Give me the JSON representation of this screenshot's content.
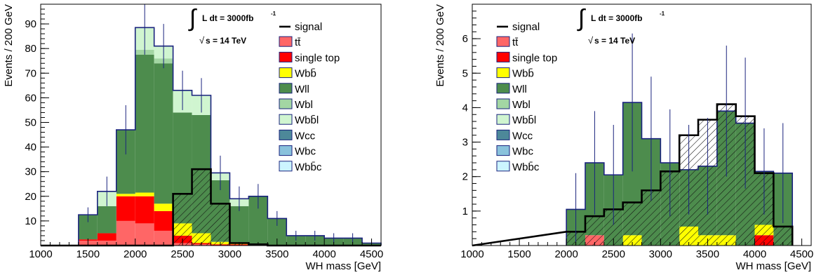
{
  "chart_data": [
    {
      "type": "bar",
      "stacked": true,
      "xlabel": "WH mass [GeV]",
      "ylabel": "Events / 200 GeV",
      "xlim": [
        1000,
        4600
      ],
      "ylim": [
        0,
        98
      ],
      "xticks": [
        1000,
        1500,
        2000,
        2500,
        3000,
        3500,
        4000,
        4500
      ],
      "yticks": [
        10,
        20,
        30,
        40,
        50,
        60,
        70,
        80,
        90
      ],
      "bin_edges": [
        1400,
        1600,
        1800,
        2000,
        2200,
        2400,
        2600,
        2800,
        3000,
        3200,
        3400,
        3600,
        3800,
        4000,
        4200,
        4400,
        4600
      ],
      "annotation": {
        "integral": "L dt = 3000fb",
        "exponent": "-1",
        "energy": "s = 14 TeV"
      },
      "legend_position": "top-right",
      "series": [
        {
          "name": "tt̄",
          "color": "#ff6666",
          "hatched": false,
          "values": [
            2,
            2,
            10,
            9,
            6,
            1,
            0.5,
            0,
            0,
            0,
            0,
            0,
            0,
            0,
            0,
            0
          ]
        },
        {
          "name": "single top",
          "color": "#ff0000",
          "hatched": false,
          "values": [
            0.5,
            3,
            10,
            11,
            8,
            3,
            0.5,
            0.5,
            0.5,
            0,
            0,
            0,
            0,
            0,
            0,
            0
          ]
        },
        {
          "name": "Wbb̄",
          "color": "#ffff00",
          "hatched": false,
          "values": [
            0,
            0,
            1,
            1.5,
            3,
            5,
            4,
            1,
            0.5,
            0,
            0,
            0,
            0,
            0,
            0,
            0
          ]
        },
        {
          "name": "Wll",
          "color": "#4d8c4d",
          "hatched": false,
          "values": [
            10,
            11,
            26,
            56,
            57,
            45,
            48,
            25,
            15,
            20,
            11,
            4,
            4,
            3,
            3,
            1
          ]
        },
        {
          "name": "Wbl",
          "color": "#a3d6a3",
          "hatched": false,
          "values": [
            0,
            0,
            0,
            2,
            2,
            0,
            0,
            0,
            0,
            0,
            0,
            0,
            0,
            0,
            0,
            0
          ]
        },
        {
          "name": "Wbb̄l",
          "color": "#d0f5d0",
          "hatched": false,
          "values": [
            0,
            6,
            0,
            9,
            5,
            9,
            8,
            3,
            3,
            0,
            0,
            0,
            0,
            0,
            0,
            0
          ]
        },
        {
          "name": "Wcc",
          "color": "#4d8899",
          "hatched": false,
          "values": [
            0,
            0,
            0,
            0,
            0,
            0,
            0,
            0,
            0,
            0,
            0,
            0,
            0,
            0,
            0,
            0
          ]
        },
        {
          "name": "Wbc",
          "color": "#8ac2dc",
          "hatched": false,
          "values": [
            0,
            0,
            0,
            0,
            0,
            0,
            0,
            0,
            0,
            0,
            0,
            0,
            0,
            0,
            0,
            0
          ]
        },
        {
          "name": "Wbb̄c",
          "color": "#ccf5ff",
          "hatched": false,
          "values": [
            0,
            0,
            0,
            0,
            0,
            0,
            0,
            0,
            0,
            0,
            0,
            0,
            0,
            0,
            0,
            0
          ]
        }
      ],
      "signal": {
        "name": "signal",
        "values": [
          0,
          0,
          0,
          0,
          0,
          21,
          31,
          17,
          1,
          0.5,
          0,
          0,
          0,
          0,
          0,
          0
        ]
      },
      "error_bars": {
        "halfwidths": [
          3,
          6,
          10,
          11,
          9,
          8,
          7,
          7,
          5,
          5,
          3,
          2,
          2,
          2,
          2,
          1
        ]
      }
    },
    {
      "type": "bar",
      "stacked": true,
      "xlabel": "WH mass [GeV]",
      "ylabel": "Events / 200 GeV",
      "xlim": [
        1000,
        4600
      ],
      "ylim": [
        0,
        7
      ],
      "xticks": [
        1000,
        1500,
        2000,
        2500,
        3000,
        3500,
        4000,
        4500
      ],
      "yticks": [
        1,
        2,
        3,
        4,
        5,
        6
      ],
      "bin_edges": [
        2000,
        2200,
        2400,
        2600,
        2800,
        3000,
        3200,
        3400,
        3600,
        3800,
        4000,
        4200,
        4400
      ],
      "annotation": {
        "integral": "L dt = 3000fb",
        "exponent": "-1",
        "energy": "s = 14 TeV"
      },
      "legend_position": "top-left",
      "series": [
        {
          "name": "tt̄",
          "color": "#ff6666",
          "hatched": false,
          "values": [
            0,
            0.3,
            0,
            0,
            0,
            0,
            0,
            0,
            0,
            0,
            0,
            0
          ]
        },
        {
          "name": "single top",
          "color": "#ff0000",
          "hatched": false,
          "values": [
            0,
            0,
            0,
            0,
            0,
            0,
            0,
            0,
            0,
            0,
            0.3,
            0
          ]
        },
        {
          "name": "Wbb̄",
          "color": "#ffff00",
          "hatched": false,
          "values": [
            0,
            0,
            0,
            0.3,
            0,
            0,
            0.55,
            0.3,
            0.3,
            0,
            0.3,
            0
          ]
        },
        {
          "name": "Wll",
          "color": "#4d8c4d",
          "hatched": false,
          "values": [
            1.05,
            2.1,
            2.05,
            3.85,
            3.1,
            2.4,
            1.65,
            2.0,
            3.6,
            3.55,
            1.55,
            2.1
          ]
        },
        {
          "name": "Wbl",
          "color": "#a3d6a3",
          "hatched": false,
          "values": [
            0,
            0,
            0,
            0,
            0,
            0,
            0,
            0,
            0,
            0,
            0,
            0
          ]
        },
        {
          "name": "Wbb̄l",
          "color": "#d0f5d0",
          "hatched": false,
          "values": [
            0,
            0,
            0,
            0,
            0,
            0,
            0,
            0,
            0,
            0,
            0,
            0
          ]
        },
        {
          "name": "Wcc",
          "color": "#4d8899",
          "hatched": false,
          "values": [
            0,
            0,
            0,
            0,
            0,
            0,
            0,
            0,
            0,
            0,
            0,
            0
          ]
        },
        {
          "name": "Wbc",
          "color": "#8ac2dc",
          "hatched": false,
          "values": [
            0,
            0,
            0,
            0,
            0,
            0,
            0,
            0,
            0,
            0,
            0,
            0
          ]
        },
        {
          "name": "Wbb̄c",
          "color": "#ccf5ff",
          "hatched": false,
          "values": [
            0,
            0,
            0,
            0,
            0,
            0,
            0,
            0,
            0,
            0,
            0,
            0
          ]
        }
      ],
      "signal": {
        "name": "signal",
        "values": [
          0.4,
          0.85,
          1.05,
          1.25,
          1.6,
          2.15,
          3.2,
          3.65,
          4.1,
          3.75,
          2.1,
          0.55
        ]
      },
      "error_bars": {
        "halfwidths": [
          1.05,
          1.5,
          1.45,
          2.0,
          1.8,
          1.55,
          1.3,
          1.4,
          1.9,
          1.9,
          1.25,
          1.45
        ]
      }
    }
  ]
}
